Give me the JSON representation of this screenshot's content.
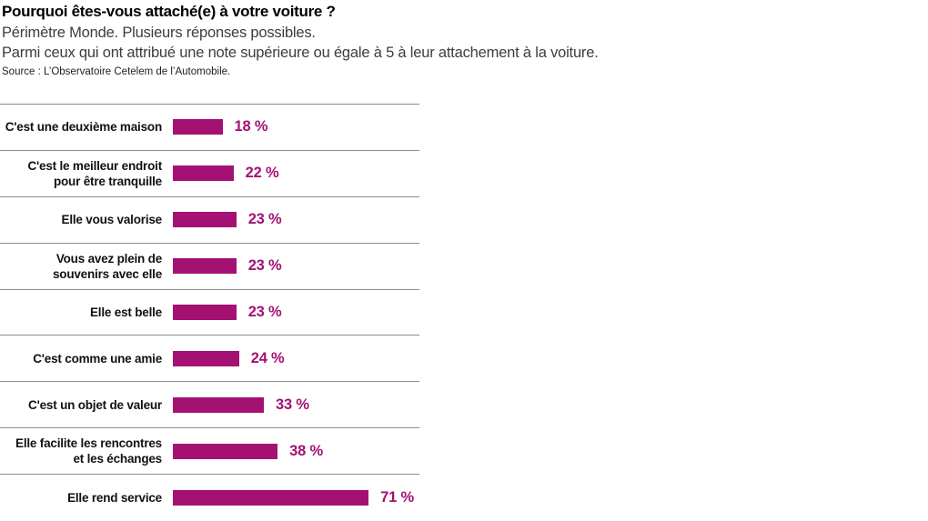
{
  "header": {
    "title": "Pourquoi êtes-vous attaché(e) à votre voiture ?",
    "subtitle_line1": "Périmètre Monde. Plusieurs réponses possibles.",
    "subtitle_line2": "Parmi ceux qui ont attribué une note supérieure ou égale à 5 à leur attachement à la voiture.",
    "source": "Source : L’Observatoire Cetelem de l’Automobile."
  },
  "colors": {
    "bar": "#a41173",
    "value_text": "#a41173",
    "separator": "#8c8c8c",
    "title_text": "#000000",
    "subtitle_text": "#3d3d3d"
  },
  "chart_data": {
    "type": "bar",
    "orientation": "horizontal",
    "title": "Pourquoi êtes-vous attaché(e) à votre voiture ?",
    "subtitle": "Périmètre Monde. Plusieurs réponses possibles. Parmi ceux qui ont attribué une note supérieure ou égale à 5 à leur attachement à la voiture.",
    "source": "Source : L’Observatoire Cetelem de l’Automobile.",
    "xlabel": "",
    "ylabel": "",
    "xlim": [
      0,
      100
    ],
    "grid": false,
    "legend": false,
    "value_suffix": " %",
    "categories": [
      "C'est une deuxième maison",
      "C'est le meilleur endroit pour être tranquille",
      "Elle vous valorise",
      "Vous avez plein de souvenirs avec elle",
      "Elle est belle",
      "C'est comme une amie",
      "C'est un objet de valeur",
      "Elle facilite les rencontres et les échanges",
      "Elle rend service"
    ],
    "values": [
      18,
      22,
      23,
      23,
      23,
      24,
      33,
      38,
      71
    ],
    "rows": [
      {
        "label": "C'est une deuxième maison",
        "value": 18,
        "display": "18 %"
      },
      {
        "label": "C'est le meilleur endroit\npour être tranquille",
        "value": 22,
        "display": "22 %"
      },
      {
        "label": "Elle vous valorise",
        "value": 23,
        "display": "23 %"
      },
      {
        "label": "Vous avez plein de\nsouvenirs avec elle",
        "value": 23,
        "display": "23 %"
      },
      {
        "label": "Elle est belle",
        "value": 23,
        "display": "23 %"
      },
      {
        "label": "C'est comme une amie",
        "value": 24,
        "display": "24 %"
      },
      {
        "label": "C'est un objet de valeur",
        "value": 33,
        "display": "33 %"
      },
      {
        "label": "Elle facilite les rencontres\net les échanges",
        "value": 38,
        "display": "38 %"
      },
      {
        "label": "Elle rend service",
        "value": 71,
        "display": "71 %"
      }
    ]
  }
}
